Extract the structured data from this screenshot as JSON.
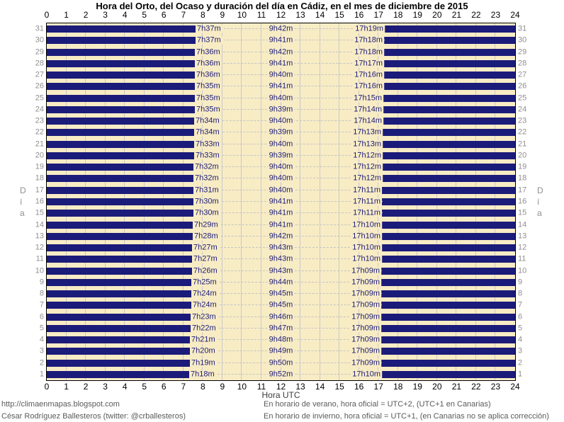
{
  "chart_data": {
    "type": "bar",
    "subtype": "horizontal-night-day-bars",
    "title": "Hora del Orto, del Ocaso y duración del día en Cádiz, en el mes de diciembre de 2015",
    "xlabel": "Hora UTC",
    "ylabel": "Día",
    "ylabel_letters": [
      "D",
      "í",
      "a"
    ],
    "xlim": [
      0,
      24
    ],
    "x_ticks": [
      0,
      1,
      2,
      3,
      4,
      5,
      6,
      7,
      8,
      9,
      10,
      11,
      12,
      13,
      14,
      15,
      16,
      17,
      18,
      19,
      20,
      21,
      22,
      23,
      24
    ],
    "grid": "on",
    "days": [
      {
        "day": 1,
        "sunrise": "7h18m",
        "duration": "9h52m",
        "sunset": "17h10m"
      },
      {
        "day": 2,
        "sunrise": "7h19m",
        "duration": "9h50m",
        "sunset": "17h09m"
      },
      {
        "day": 3,
        "sunrise": "7h20m",
        "duration": "9h49m",
        "sunset": "17h09m"
      },
      {
        "day": 4,
        "sunrise": "7h21m",
        "duration": "9h48m",
        "sunset": "17h09m"
      },
      {
        "day": 5,
        "sunrise": "7h22m",
        "duration": "9h47m",
        "sunset": "17h09m"
      },
      {
        "day": 6,
        "sunrise": "7h23m",
        "duration": "9h46m",
        "sunset": "17h09m"
      },
      {
        "day": 7,
        "sunrise": "7h24m",
        "duration": "9h45m",
        "sunset": "17h09m"
      },
      {
        "day": 8,
        "sunrise": "7h24m",
        "duration": "9h45m",
        "sunset": "17h09m"
      },
      {
        "day": 9,
        "sunrise": "7h25m",
        "duration": "9h44m",
        "sunset": "17h09m"
      },
      {
        "day": 10,
        "sunrise": "7h26m",
        "duration": "9h43m",
        "sunset": "17h09m"
      },
      {
        "day": 11,
        "sunrise": "7h27m",
        "duration": "9h43m",
        "sunset": "17h10m"
      },
      {
        "day": 12,
        "sunrise": "7h27m",
        "duration": "9h43m",
        "sunset": "17h10m"
      },
      {
        "day": 13,
        "sunrise": "7h28m",
        "duration": "9h42m",
        "sunset": "17h10m"
      },
      {
        "day": 14,
        "sunrise": "7h29m",
        "duration": "9h41m",
        "sunset": "17h10m"
      },
      {
        "day": 15,
        "sunrise": "7h30m",
        "duration": "9h41m",
        "sunset": "17h11m"
      },
      {
        "day": 16,
        "sunrise": "7h30m",
        "duration": "9h41m",
        "sunset": "17h11m"
      },
      {
        "day": 17,
        "sunrise": "7h31m",
        "duration": "9h40m",
        "sunset": "17h11m"
      },
      {
        "day": 18,
        "sunrise": "7h32m",
        "duration": "9h40m",
        "sunset": "17h12m"
      },
      {
        "day": 19,
        "sunrise": "7h32m",
        "duration": "9h40m",
        "sunset": "17h12m"
      },
      {
        "day": 20,
        "sunrise": "7h33m",
        "duration": "9h39m",
        "sunset": "17h12m"
      },
      {
        "day": 21,
        "sunrise": "7h33m",
        "duration": "9h40m",
        "sunset": "17h13m"
      },
      {
        "day": 22,
        "sunrise": "7h34m",
        "duration": "9h39m",
        "sunset": "17h13m"
      },
      {
        "day": 23,
        "sunrise": "7h34m",
        "duration": "9h40m",
        "sunset": "17h14m"
      },
      {
        "day": 24,
        "sunrise": "7h35m",
        "duration": "9h39m",
        "sunset": "17h14m"
      },
      {
        "day": 25,
        "sunrise": "7h35m",
        "duration": "9h40m",
        "sunset": "17h15m"
      },
      {
        "day": 26,
        "sunrise": "7h35m",
        "duration": "9h41m",
        "sunset": "17h16m"
      },
      {
        "day": 27,
        "sunrise": "7h36m",
        "duration": "9h40m",
        "sunset": "17h16m"
      },
      {
        "day": 28,
        "sunrise": "7h36m",
        "duration": "9h41m",
        "sunset": "17h17m"
      },
      {
        "day": 29,
        "sunrise": "7h36m",
        "duration": "9h42m",
        "sunset": "17h18m"
      },
      {
        "day": 30,
        "sunrise": "7h37m",
        "duration": "9h41m",
        "sunset": "17h18m"
      },
      {
        "day": 31,
        "sunrise": "7h37m",
        "duration": "9h42m",
        "sunset": "17h19m"
      }
    ]
  },
  "colors": {
    "night_bar": "#1b1b7a",
    "day_background": "#f8ecc5",
    "grid": "#c9c9c9",
    "time_label_text": "#1b1b7a",
    "day_axis_text": "#8f8f8f",
    "border": "#000000"
  },
  "footer": {
    "left_lines": [
      "http://climaenmapas.blogspot.com",
      "César Rodríguez Ballesteros (twitter: @crballesteros)"
    ],
    "right_lines": [
      "En horario de verano, hora oficial = UTC+2, (UTC+1 en Canarias)",
      "En horario de invierno, hora oficial = UTC+1, (en Canarias no se aplica corrección)"
    ]
  }
}
